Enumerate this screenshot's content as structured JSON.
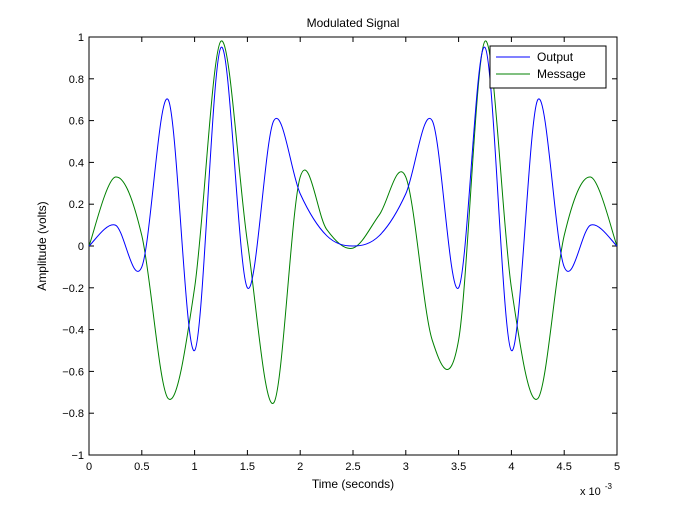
{
  "chart_data": {
    "type": "line",
    "title": "Modulated Signal",
    "xlabel": "Time (seconds)",
    "ylabel": "Amplitude (volts)",
    "x_multiplier_base": "x 10",
    "x_multiplier_exponent": "-3",
    "xlim": [
      0,
      5
    ],
    "ylim": [
      -1,
      1
    ],
    "x_ticks": [
      0,
      0.5,
      1,
      1.5,
      2,
      2.5,
      3,
      3.5,
      4,
      4.5,
      5
    ],
    "x_tick_labels": [
      "0",
      "0.5",
      "1",
      "1.5",
      "2",
      "2.5",
      "3",
      "3.5",
      "4",
      "4.5",
      "5"
    ],
    "y_ticks": [
      -1,
      -0.8,
      -0.6,
      -0.4,
      -0.2,
      0,
      0.2,
      0.4,
      0.6,
      0.8,
      1
    ],
    "y_tick_labels": [
      "−1",
      "−0.8",
      "−0.6",
      "−0.4",
      "−0.2",
      "0",
      "0.2",
      "0.4",
      "0.6",
      "0.8",
      "1"
    ],
    "grid": false,
    "legend_position": "top-right",
    "x_samples": [
      0,
      0.25,
      0.5,
      0.75,
      1,
      1.25,
      1.5,
      1.75,
      2,
      2.25,
      2.5,
      2.75,
      3,
      3.25,
      3.5,
      3.75,
      4,
      4.25,
      4.5,
      4.75,
      5
    ],
    "series": [
      {
        "name": "Output",
        "color": "#0000ff",
        "values": [
          0,
          0.1,
          -0.1,
          0.7,
          -0.5,
          0.95,
          -0.2,
          0.6,
          0.25,
          0.05,
          0,
          0.05,
          0.25,
          0.6,
          -0.2,
          0.95,
          -0.5,
          0.7,
          -0.1,
          0.1,
          0
        ]
      },
      {
        "name": "Message",
        "color": "#008000",
        "values": [
          0,
          0.33,
          0.05,
          -0.73,
          -0.2,
          0.98,
          0.02,
          -0.75,
          0.33,
          0.08,
          -0.01,
          0.15,
          0.33,
          -0.45,
          -0.45,
          0.98,
          -0.2,
          -0.73,
          0.05,
          0.33,
          0
        ]
      }
    ]
  }
}
